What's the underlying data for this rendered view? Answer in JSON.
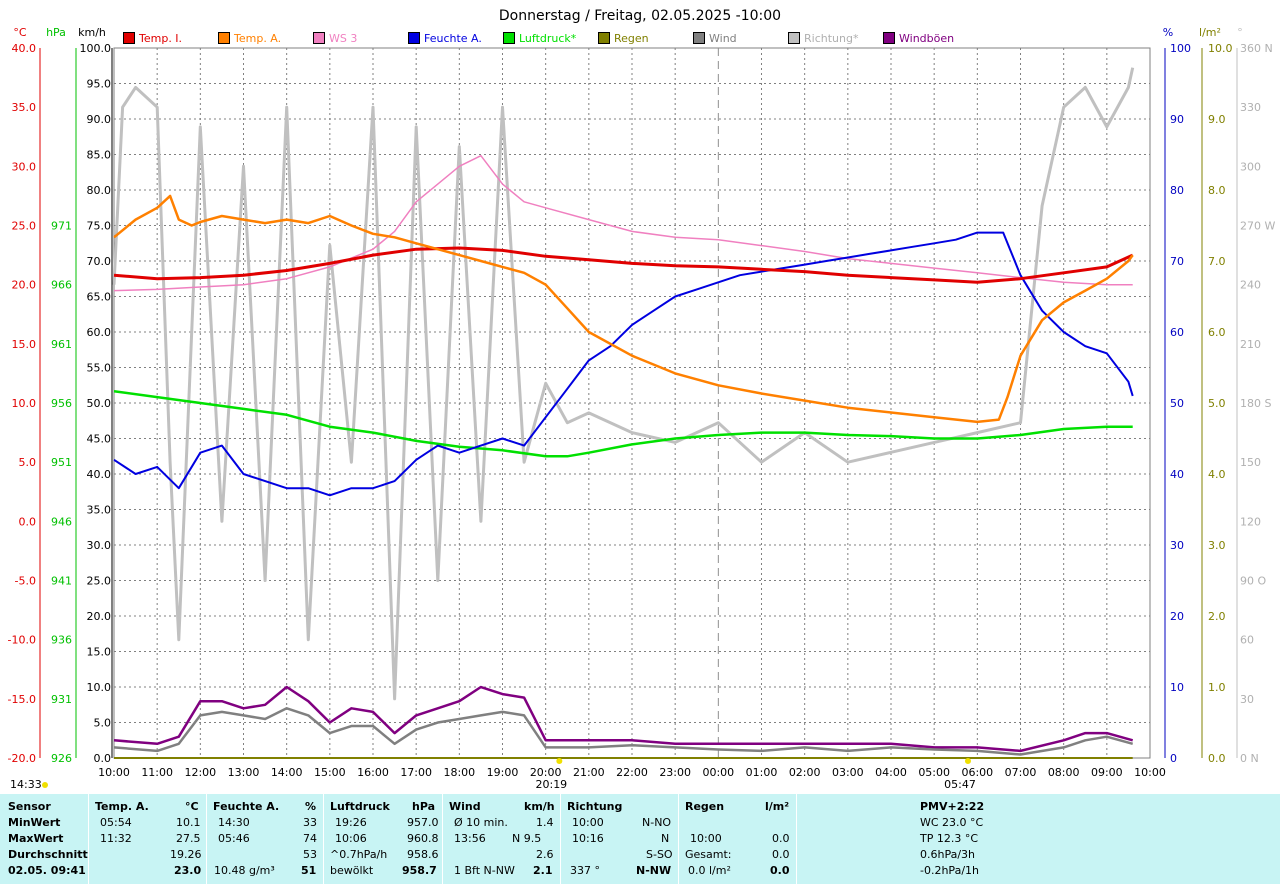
{
  "title": "Donnerstag / Freitag, 02.05.2025  -10:00",
  "colors": {
    "temp_i": "#e00000",
    "temp_a": "#ff8000",
    "ws3": "#f080c0",
    "feuchte_a": "#0000e0",
    "luftdruck": "#00e000",
    "regen": "#808000",
    "wind": "#808080",
    "richtung": "#c0c0c0",
    "windboen": "#800080"
  },
  "axis_units": {
    "temp": "°C",
    "hpa": "hPa",
    "kmh": "km/h",
    "pct": "%",
    "rain": "l/m²",
    "dir": "°"
  },
  "chart_data": {
    "type": "line",
    "title": "Donnerstag / Freitag, 02.05.2025  -10:00",
    "x_ticks": [
      "10:00",
      "11:00",
      "12:00",
      "13:00",
      "14:00",
      "15:00",
      "16:00",
      "17:00",
      "18:00",
      "19:00",
      "20:00",
      "21:00",
      "22:00",
      "23:00",
      "00:00",
      "01:00",
      "02:00",
      "03:00",
      "04:00",
      "05:00",
      "06:00",
      "07:00",
      "08:00",
      "09:00",
      "10:00"
    ],
    "x_range_hours": [
      10,
      34
    ],
    "y_axes": {
      "temp": {
        "unit": "°C",
        "range": [
          -20,
          40
        ],
        "ticks": [
          "40.0",
          "35.0",
          "30.0",
          "25.0",
          "20.0",
          "15.0",
          "10.0",
          "5.0",
          "0.0",
          "-5.0",
          "-10.0",
          "-15.0",
          "-20.0"
        ]
      },
      "hpa": {
        "unit": "hPa",
        "range": [
          926,
          986
        ],
        "ticks": [
          "971",
          "966",
          "961",
          "956",
          "951",
          "946",
          "941",
          "936",
          "931",
          "926"
        ]
      },
      "kmh": {
        "unit": "km/h",
        "range": [
          0,
          100
        ],
        "ticks": [
          "100.0",
          "95.0",
          "90.0",
          "85.0",
          "80.0",
          "75.0",
          "70.0",
          "65.0",
          "60.0",
          "55.0",
          "50.0",
          "45.0",
          "40.0",
          "35.0",
          "30.0",
          "25.0",
          "20.0",
          "15.0",
          "10.0",
          "5.0",
          "0.0"
        ]
      },
      "pct": {
        "unit": "%",
        "range": [
          0,
          100
        ],
        "ticks": [
          "100",
          "90",
          "80",
          "70",
          "60",
          "50",
          "40",
          "30",
          "20",
          "10",
          "0"
        ]
      },
      "rain": {
        "unit": "l/m²",
        "range": [
          0,
          10
        ],
        "ticks": [
          "10.0",
          "9.0",
          "8.0",
          "7.0",
          "6.0",
          "5.0",
          "4.0",
          "3.0",
          "2.0",
          "1.0",
          "0.0"
        ]
      },
      "dir": {
        "unit": "°",
        "range": [
          0,
          360
        ],
        "ticks": [
          "360 N",
          "330",
          "300",
          "270 W",
          "240",
          "210",
          "180 S",
          "150",
          "120",
          "90 O",
          "60",
          "30",
          "0 N"
        ]
      }
    },
    "sun_events": {
      "sunset": "20:19",
      "sunrise": "05:47",
      "moon": "14:33"
    },
    "series": [
      {
        "name": "Temp. I.",
        "axis": "temp",
        "x": [
          10,
          11,
          12,
          13,
          14,
          15,
          16,
          17,
          18,
          19,
          20,
          21,
          22,
          23,
          24,
          25,
          26,
          27,
          28,
          29,
          30,
          31,
          32,
          33,
          33.6
        ],
        "y": [
          20.8,
          20.5,
          20.6,
          20.8,
          21.2,
          21.8,
          22.5,
          23.0,
          23.1,
          22.9,
          22.4,
          22.1,
          21.8,
          21.6,
          21.5,
          21.3,
          21.1,
          20.8,
          20.6,
          20.4,
          20.2,
          20.5,
          21.0,
          21.5,
          22.5
        ]
      },
      {
        "name": "Temp. A.",
        "axis": "temp",
        "x": [
          10,
          10.5,
          11,
          11.3,
          11.5,
          11.8,
          12,
          12.5,
          13,
          13.5,
          14,
          14.5,
          15,
          15.5,
          16,
          16.5,
          17,
          17.5,
          18,
          18.5,
          19,
          19.5,
          20,
          20.5,
          21,
          22,
          23,
          24,
          25,
          26,
          27,
          28,
          29,
          30,
          30.5,
          30.7,
          31,
          31.5,
          32,
          32.5,
          33,
          33.5,
          33.6
        ],
        "y": [
          24,
          25.5,
          26.5,
          27.5,
          25.5,
          25,
          25.3,
          25.8,
          25.5,
          25.2,
          25.5,
          25.2,
          25.8,
          25,
          24.3,
          24,
          23.5,
          23,
          22.5,
          22,
          21.5,
          21,
          20,
          18,
          16,
          14,
          12.5,
          11.5,
          10.8,
          10.2,
          9.6,
          9.2,
          8.8,
          8.4,
          8.6,
          10.5,
          14,
          17,
          18.5,
          19.5,
          20.5,
          22,
          22.5
        ]
      },
      {
        "name": "WS 3",
        "axis": "temp",
        "x": [
          10,
          11,
          12,
          13,
          14,
          15,
          16,
          16.5,
          17,
          17.5,
          18,
          18.5,
          19,
          19.5,
          20,
          21,
          22,
          23,
          24,
          25,
          26,
          27,
          28,
          29,
          30,
          31,
          32,
          33,
          33.6
        ],
        "y": [
          19.5,
          19.6,
          19.8,
          20.0,
          20.5,
          21.5,
          23.0,
          24.5,
          27,
          28.5,
          30,
          30.9,
          28.5,
          27,
          26.5,
          25.5,
          24.5,
          24,
          23.8,
          23.3,
          22.8,
          22.2,
          21.8,
          21.4,
          21.0,
          20.6,
          20.2,
          20.0,
          20.0
        ]
      },
      {
        "name": "Feuchte A.",
        "axis": "pct",
        "x": [
          10,
          10.5,
          11,
          11.5,
          12,
          12.5,
          13,
          13.5,
          14,
          14.5,
          15,
          15.5,
          16,
          16.5,
          17,
          17.5,
          18,
          18.5,
          19,
          19.5,
          20,
          20.5,
          21,
          21.5,
          22,
          22.5,
          23,
          23.5,
          24,
          24.5,
          25,
          25.5,
          26,
          26.5,
          27,
          27.5,
          28,
          28.5,
          29,
          29.5,
          30,
          30.3,
          30.6,
          31,
          31.5,
          32,
          32.5,
          33,
          33.5,
          33.6
        ],
        "y": [
          42,
          40,
          41,
          38,
          43,
          44,
          40,
          39,
          38,
          38,
          37,
          38,
          38,
          39,
          42,
          44,
          43,
          44,
          45,
          44,
          48,
          52,
          56,
          58,
          61,
          63,
          65,
          66,
          67,
          68,
          68.5,
          69,
          69.5,
          70,
          70.5,
          71,
          71.5,
          72,
          72.5,
          73,
          74,
          74,
          74,
          68,
          63,
          60,
          58,
          57,
          53,
          51
        ]
      },
      {
        "name": "Luftdruck*",
        "axis": "hpa",
        "x": [
          10,
          11,
          12,
          13,
          14,
          15,
          16,
          17,
          18,
          19,
          20,
          20.5,
          21,
          22,
          23,
          24,
          25,
          26,
          27,
          28,
          29,
          30,
          31,
          32,
          33,
          33.6
        ],
        "y": [
          957,
          956.5,
          956,
          955.5,
          955,
          954,
          953.5,
          952.8,
          952.3,
          952,
          951.5,
          951.5,
          951.8,
          952.5,
          953,
          953.3,
          953.5,
          953.5,
          953.3,
          953.2,
          953,
          953,
          953.3,
          953.8,
          954,
          954
        ]
      },
      {
        "name": "Regen",
        "axis": "rain",
        "x": [
          10,
          33.6
        ],
        "y": [
          0,
          0
        ]
      },
      {
        "name": "Wind",
        "axis": "kmh",
        "x": [
          10,
          11,
          11.5,
          12,
          12.5,
          13,
          13.5,
          14,
          14.5,
          15,
          15.5,
          16,
          16.5,
          17,
          17.5,
          18,
          18.5,
          19,
          19.5,
          20,
          21,
          22,
          23,
          24,
          25,
          26,
          27,
          28,
          29,
          30,
          31,
          32,
          32.5,
          33,
          33.6
        ],
        "y": [
          1.5,
          1.0,
          2.0,
          6.0,
          6.5,
          6.0,
          5.5,
          7.0,
          6.0,
          3.5,
          4.5,
          4.5,
          2.0,
          4.0,
          5.0,
          5.5,
          6.0,
          6.5,
          6.0,
          1.5,
          1.5,
          1.8,
          1.5,
          1.2,
          1.0,
          1.5,
          1.0,
          1.5,
          1.2,
          1.0,
          0.5,
          1.5,
          2.5,
          3.0,
          2.0
        ]
      },
      {
        "name": "Richtung*",
        "axis": "dir",
        "x": [
          10,
          10.2,
          10.5,
          11,
          11.3,
          11.5,
          12,
          12.5,
          13,
          13.5,
          14,
          14.5,
          15,
          15.5,
          16,
          16.5,
          17,
          17.5,
          18,
          18.5,
          19,
          19.5,
          20,
          20.5,
          21,
          22,
          23,
          24,
          25,
          26,
          27,
          28,
          29,
          30,
          31,
          31.5,
          32,
          32.5,
          33,
          33.5,
          33.6
        ],
        "y": [
          240,
          330,
          340,
          330,
          150,
          60,
          320,
          120,
          300,
          90,
          330,
          60,
          260,
          150,
          330,
          30,
          320,
          90,
          310,
          120,
          330,
          150,
          190,
          170,
          175,
          165,
          160,
          170,
          150,
          165,
          150,
          155,
          160,
          165,
          170,
          280,
          330,
          340,
          320,
          340,
          350
        ]
      },
      {
        "name": "Windböen",
        "axis": "kmh",
        "x": [
          10,
          11,
          11.5,
          12,
          12.5,
          13,
          13.5,
          14,
          14.5,
          15,
          15.5,
          16,
          16.5,
          17,
          17.5,
          18,
          18.5,
          19,
          19.5,
          20,
          21,
          22,
          23,
          24,
          25,
          26,
          27,
          28,
          29,
          30,
          31,
          32,
          32.5,
          33,
          33.6
        ],
        "y": [
          2.5,
          2.0,
          3.0,
          8.0,
          8.0,
          7.0,
          7.5,
          10.0,
          8.0,
          5.0,
          7.0,
          6.5,
          3.5,
          6.0,
          7.0,
          8.0,
          10.0,
          9.0,
          8.5,
          2.5,
          2.5,
          2.5,
          2.0,
          2.0,
          2.0,
          2.0,
          2.0,
          2.0,
          1.5,
          1.5,
          1.0,
          2.5,
          3.5,
          3.5,
          2.5
        ]
      }
    ]
  },
  "legend": [
    {
      "label": "Temp. I.",
      "color": "#e00000",
      "x": 123
    },
    {
      "label": "Temp. A.",
      "color": "#ff8000",
      "x": 218
    },
    {
      "label": "WS 3",
      "color": "#f080c0",
      "x": 313
    },
    {
      "label": "Feuchte A.",
      "color": "#0000e0",
      "x": 408
    },
    {
      "label": "Luftdruck*",
      "color": "#00e000",
      "x": 503
    },
    {
      "label": "Regen",
      "color": "#808000",
      "x": 598
    },
    {
      "label": "Wind",
      "color": "#808080",
      "x": 693
    },
    {
      "label": "Richtung*",
      "color": "#c0c0c0",
      "x": 788
    },
    {
      "label": "Windböen",
      "color": "#800080",
      "x": 883
    }
  ],
  "stats": {
    "sensor_h": "Sensor",
    "minwert": "MinWert",
    "maxwert": "MaxWert",
    "durchschnitt": "Durchschnitt",
    "date": "02.05. 09:41",
    "temp_h": "Temp. A.",
    "temp_unit": "°C",
    "temp_min_t": "05:54",
    "temp_min_v": "10.1",
    "temp_max_t": "11:32",
    "temp_max_v": "27.5",
    "temp_avg": "19.26",
    "temp_now": "23.0",
    "feuchte_h": "Feuchte A.",
    "feuchte_unit": "%",
    "feuchte_min_t": "14:30",
    "feuchte_min_v": "33",
    "feuchte_max_t": "05:46",
    "feuchte_max_v": "74",
    "feuchte_avg": "53",
    "feuchte_abs": "10.48 g/m³",
    "feuchte_now": "51",
    "luft_h": "Luftdruck",
    "luft_unit": "hPa",
    "luft_min_t": "19:26",
    "luft_min_v": "957.0",
    "luft_max_t": "10:06",
    "luft_max_v": "960.8",
    "luft_trend": "^0.7hPa/h",
    "luft_avg": "958.6",
    "luft_state": "bewölkt",
    "luft_now": "958.7",
    "wind_h": "Wind",
    "wind_unit": "km/h",
    "wind_avg10": "Ø 10 min.",
    "wind_avg10_v": "1.4",
    "wind_max_t": "13:56",
    "wind_max_d": "N 9.5",
    "wind_avg": "2.6",
    "wind_bft": "1 Bft N-NW",
    "wind_now": "2.1",
    "dir_h": "Richtung",
    "dir_min_t": "10:00",
    "dir_min_v": "N-NO",
    "dir_max_t": "10:16",
    "dir_max_v": "N",
    "dir_avg": "S-SO",
    "dir_deg": "337 °",
    "dir_now": "N-NW",
    "rain_h": "Regen",
    "rain_unit": "l/m²",
    "rain_max_t": "10:00",
    "rain_max_v": "0.0",
    "rain_total_l": "Gesamt:",
    "rain_total_v": "0.0",
    "rain_rate": "0.0 l/m²",
    "rain_now": "0.0",
    "pmv": "PMV+2:22",
    "wc": "WC 23.0 °C",
    "tp": "TP 12.3 °C",
    "p3h": "0.6hPa/3h",
    "p1h": "-0.2hPa/1h"
  }
}
